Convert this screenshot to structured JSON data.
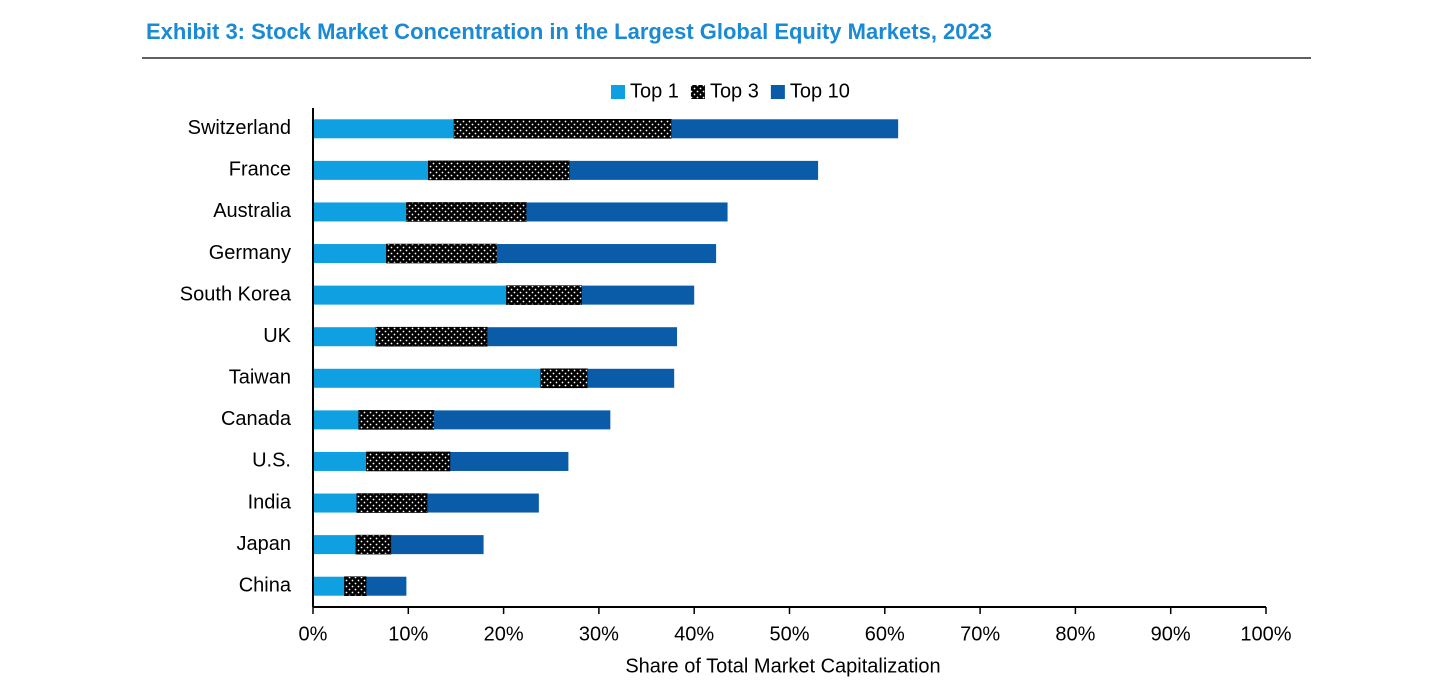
{
  "chart_data": {
    "type": "stacked-barh",
    "title": "Exhibit 3: Stock Market Concentration in the Largest Global Equity Markets, 2023",
    "xlabel": "Share of Total Market Capitalization",
    "categories": [
      "Switzerland",
      "France",
      "Australia",
      "Germany",
      "South Korea",
      "UK",
      "Taiwan",
      "Canada",
      "U.S.",
      "India",
      "Japan",
      "China"
    ],
    "series": [
      {
        "name": "Top 1",
        "color": "#0ea0e0",
        "values": [
          14.8,
          12.1,
          9.8,
          7.7,
          20.3,
          6.6,
          23.9,
          4.8,
          5.6,
          4.6,
          4.5,
          3.3
        ]
      },
      {
        "name": "Top 3",
        "color": "#000000",
        "values": [
          22.8,
          14.8,
          12.6,
          11.6,
          7.9,
          11.7,
          4.9,
          7.9,
          8.8,
          7.4,
          3.7,
          2.3
        ]
      },
      {
        "name": "Top 10",
        "color": "#0a5ba8",
        "values": [
          23.8,
          26.1,
          21.1,
          23.0,
          11.8,
          19.9,
          9.1,
          18.5,
          12.4,
          11.7,
          9.7,
          4.2
        ]
      }
    ],
    "xlim": [
      0,
      100
    ],
    "xticks": [
      {
        "value": 0,
        "label": "0%"
      },
      {
        "value": 10,
        "label": "10%"
      },
      {
        "value": 20,
        "label": "20%"
      },
      {
        "value": 30,
        "label": "30%"
      },
      {
        "value": 40,
        "label": "40%"
      },
      {
        "value": 50,
        "label": "50%"
      },
      {
        "value": 60,
        "label": "60%"
      },
      {
        "value": 70,
        "label": "70%"
      },
      {
        "value": 80,
        "label": "80%"
      },
      {
        "value": 90,
        "label": "90%"
      },
      {
        "value": 100,
        "label": "100%"
      }
    ],
    "legend": "top"
  }
}
